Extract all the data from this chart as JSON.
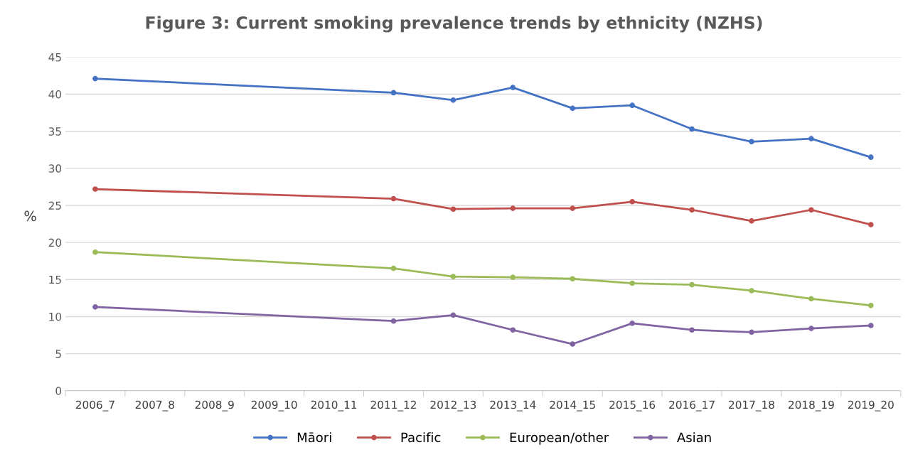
{
  "chart_data": {
    "type": "line",
    "title": "Figure 3: Current smoking prevalence trends by ethnicity (NZHS)",
    "ylabel": "%",
    "categories": [
      "2006_7",
      "2007_8",
      "2008_9",
      "2009_10",
      "2010_11",
      "2011_12",
      "2012_13",
      "2013_14",
      "2014_15",
      "2015_16",
      "2016_17",
      "2017_18",
      "2018_19",
      "2019_20"
    ],
    "series": [
      {
        "name": "Māori",
        "color": "#4472c4",
        "values": [
          42.1,
          null,
          null,
          null,
          null,
          40.2,
          39.2,
          40.9,
          38.1,
          38.5,
          35.3,
          33.6,
          34.0,
          31.5
        ]
      },
      {
        "name": "Pacific",
        "color": "#c0504d",
        "values": [
          27.2,
          null,
          null,
          null,
          null,
          25.9,
          24.5,
          24.6,
          24.6,
          25.5,
          24.4,
          22.9,
          24.4,
          22.4
        ]
      },
      {
        "name": "European/other",
        "color": "#9bbb59",
        "values": [
          18.7,
          null,
          null,
          null,
          null,
          16.5,
          15.4,
          15.3,
          15.1,
          14.5,
          14.3,
          13.5,
          12.4,
          11.5
        ]
      },
      {
        "name": "Asian",
        "color": "#8064a2",
        "values": [
          11.3,
          null,
          null,
          null,
          null,
          9.4,
          10.2,
          8.2,
          6.3,
          9.1,
          8.2,
          7.9,
          8.4,
          8.8
        ]
      }
    ],
    "ylim": [
      0,
      45
    ],
    "yticks": [
      0,
      5,
      10,
      15,
      20,
      25,
      30,
      35,
      40,
      45
    ],
    "grid": "y",
    "legend": "bottom",
    "marker": "circle",
    "line_style": "solid"
  }
}
